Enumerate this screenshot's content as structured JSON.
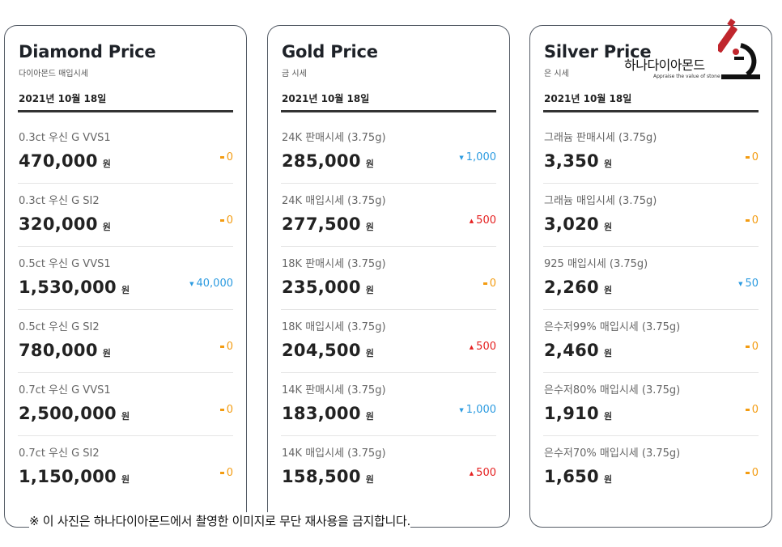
{
  "cards": [
    {
      "title": "Diamond Price",
      "subtitle": "다이아몬드 매입시세",
      "date": "2021년 10월 18일",
      "rows": [
        {
          "label": "0.3ct 우신 G VVS1",
          "price": "470,000",
          "unit": "원",
          "direction": "flat",
          "change": "0"
        },
        {
          "label": "0.3ct 우신 G SI2",
          "price": "320,000",
          "unit": "원",
          "direction": "flat",
          "change": "0"
        },
        {
          "label": "0.5ct 우신 G VVS1",
          "price": "1,530,000",
          "unit": "원",
          "direction": "down",
          "change": "40,000"
        },
        {
          "label": "0.5ct 우신 G SI2",
          "price": "780,000",
          "unit": "원",
          "direction": "flat",
          "change": "0"
        },
        {
          "label": "0.7ct 우신 G VVS1",
          "price": "2,500,000",
          "unit": "원",
          "direction": "flat",
          "change": "0"
        },
        {
          "label": "0.7ct 우신 G SI2",
          "price": "1,150,000",
          "unit": "원",
          "direction": "flat",
          "change": "0"
        }
      ]
    },
    {
      "title": "Gold Price",
      "subtitle": "금 시세",
      "date": "2021년 10월 18일",
      "rows": [
        {
          "label": "24K 판매시세 (3.75g)",
          "price": "285,000",
          "unit": "원",
          "direction": "down",
          "change": "1,000"
        },
        {
          "label": "24K 매입시세 (3.75g)",
          "price": "277,500",
          "unit": "원",
          "direction": "up",
          "change": "500"
        },
        {
          "label": "18K 판매시세 (3.75g)",
          "price": "235,000",
          "unit": "원",
          "direction": "flat",
          "change": "0"
        },
        {
          "label": "18K 매입시세 (3.75g)",
          "price": "204,500",
          "unit": "원",
          "direction": "up",
          "change": "500"
        },
        {
          "label": "14K 판매시세 (3.75g)",
          "price": "183,000",
          "unit": "원",
          "direction": "down",
          "change": "1,000"
        },
        {
          "label": "14K 매입시세 (3.75g)",
          "price": "158,500",
          "unit": "원",
          "direction": "up",
          "change": "500"
        }
      ]
    },
    {
      "title": "Silver Price",
      "subtitle": "은 시세",
      "date": "2021년 10월 18일",
      "rows": [
        {
          "label": "그래늄 판매시세 (3.75g)",
          "price": "3,350",
          "unit": "원",
          "direction": "flat",
          "change": "0"
        },
        {
          "label": "그래늄 매입시세 (3.75g)",
          "price": "3,020",
          "unit": "원",
          "direction": "flat",
          "change": "0"
        },
        {
          "label": "925 매입시세 (3.75g)",
          "price": "2,260",
          "unit": "원",
          "direction": "down",
          "change": "50"
        },
        {
          "label": "은수저99% 매입시세 (3.75g)",
          "price": "2,460",
          "unit": "원",
          "direction": "flat",
          "change": "0"
        },
        {
          "label": "은수저80% 매입시세 (3.75g)",
          "price": "1,910",
          "unit": "원",
          "direction": "flat",
          "change": "0"
        },
        {
          "label": "은수저70% 매입시세 (3.75g)",
          "price": "1,650",
          "unit": "원",
          "direction": "flat",
          "change": "0"
        }
      ]
    }
  ],
  "watermark": {
    "brand": "하나다이아몬드",
    "tagline": "Appraise the value of stone",
    "icon": "microscope-icon"
  },
  "notice": "※ 이 사진은 하나다이아몬드에서 촬영한 이미지로 무단 재사용을 금지합니다.",
  "colors": {
    "flat": "#f39c12",
    "down": "#2c9be0",
    "up": "#e52121",
    "border": "#555c66",
    "logo_accent": "#c0262d"
  }
}
